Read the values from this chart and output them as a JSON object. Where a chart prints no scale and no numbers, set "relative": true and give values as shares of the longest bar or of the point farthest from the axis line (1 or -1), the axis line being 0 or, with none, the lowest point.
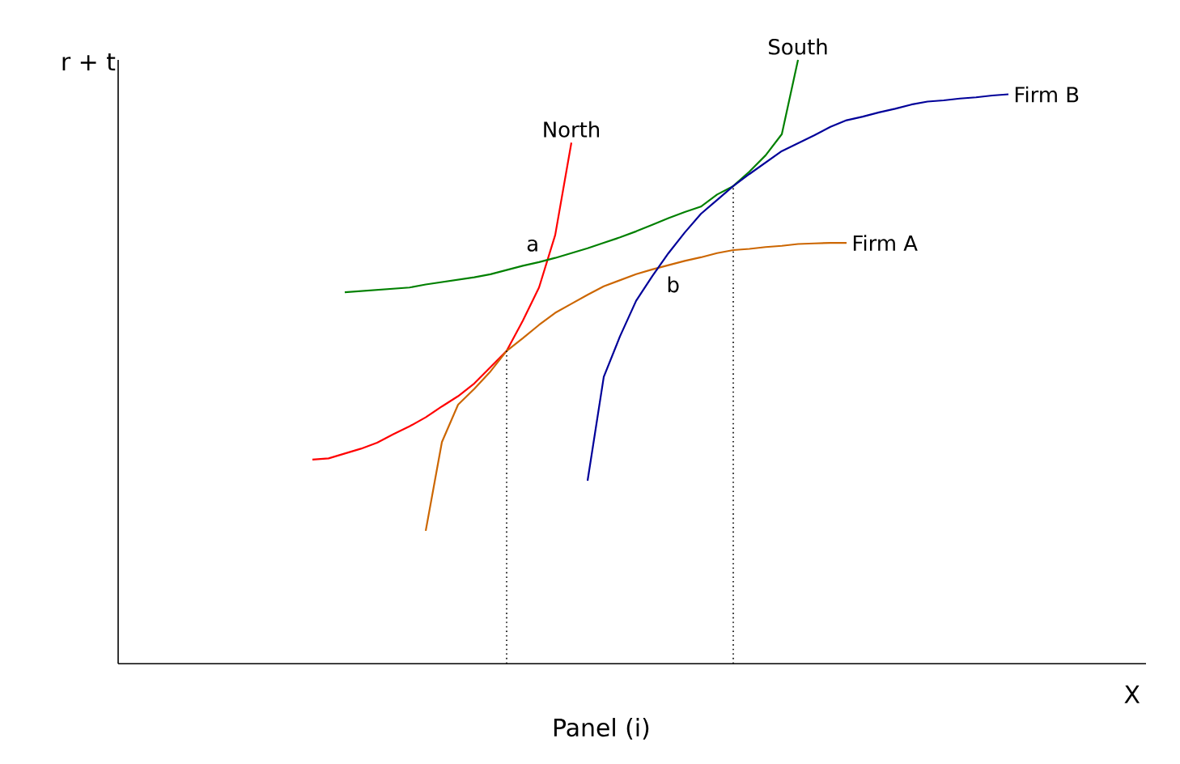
{
  "chart_data": {
    "type": "line",
    "relative": true,
    "xlabel": "X",
    "ylabel": "r + t",
    "marker": "none",
    "categories": [
      null,
      null,
      null,
      null,
      null,
      null,
      null,
      null,
      null,
      null,
      null,
      null,
      null,
      null,
      null,
      null,
      null,
      null,
      null,
      null,
      null,
      null,
      null,
      null,
      null,
      null,
      null,
      null,
      null,
      null,
      null,
      null,
      null,
      null,
      null,
      null,
      null,
      null,
      null,
      null,
      null,
      null,
      null,
      null,
      null,
      null,
      null,
      null,
      null,
      null,
      null,
      null,
      null,
      null,
      null,
      null,
      null,
      null,
      null,
      null,
      null,
      null,
      null,
      null
    ],
    "annotations": [
      {
        "text": "a",
        "y": 0.665
      },
      {
        "text": "b",
        "y": 0.651
      },
      "Panel (i)"
    ],
    "series": [
      {
        "name": "North",
        "color": "#ff0000",
        "values": [
          null,
          null,
          null,
          null,
          null,
          null,
          null,
          null,
          null,
          null,
          null,
          null,
          0.338,
          0.34,
          0.348,
          0.356,
          0.366,
          0.38,
          0.393,
          0.408,
          0.426,
          0.443,
          0.464,
          0.491,
          0.518,
          0.568,
          0.623,
          0.71,
          0.863,
          null,
          null,
          null,
          null,
          null,
          null,
          null,
          null,
          null,
          null,
          null,
          null,
          null,
          null,
          null,
          null,
          null,
          null,
          null,
          null,
          null,
          null,
          null,
          null,
          null,
          null,
          null,
          null,
          null,
          null,
          null,
          null,
          null,
          null,
          null
        ]
      },
      {
        "name": "South",
        "color": "#008000",
        "values": [
          null,
          null,
          null,
          null,
          null,
          null,
          null,
          null,
          null,
          null,
          null,
          null,
          null,
          null,
          0.615,
          0.617,
          0.619,
          0.621,
          0.623,
          0.628,
          0.632,
          0.636,
          0.64,
          0.645,
          0.652,
          0.659,
          0.665,
          0.672,
          0.68,
          0.688,
          0.697,
          0.706,
          0.716,
          0.727,
          0.738,
          0.748,
          0.757,
          0.777,
          0.791,
          0.815,
          0.842,
          0.877,
          1.0,
          null,
          null,
          null,
          null,
          null,
          null,
          null,
          null,
          null,
          null,
          null,
          null,
          null,
          null,
          null,
          null,
          null,
          null,
          null,
          null,
          null
        ]
      },
      {
        "name": "Firm A",
        "color": "#cc6600",
        "values": [
          null,
          null,
          null,
          null,
          null,
          null,
          null,
          null,
          null,
          null,
          null,
          null,
          null,
          null,
          null,
          null,
          null,
          null,
          null,
          0.22,
          0.367,
          0.429,
          0.455,
          0.484,
          0.518,
          0.539,
          0.561,
          0.581,
          0.596,
          0.611,
          0.625,
          0.635,
          0.645,
          0.653,
          0.66,
          0.667,
          0.673,
          0.68,
          0.685,
          0.687,
          0.69,
          0.692,
          0.695,
          0.696,
          0.697,
          0.697,
          null,
          null,
          null,
          null,
          null,
          null,
          null,
          null,
          null,
          null,
          null,
          null,
          null,
          null,
          null,
          null,
          null,
          null
        ]
      },
      {
        "name": "Firm B",
        "color": "#000099",
        "values": [
          null,
          null,
          null,
          null,
          null,
          null,
          null,
          null,
          null,
          null,
          null,
          null,
          null,
          null,
          null,
          null,
          null,
          null,
          null,
          null,
          null,
          null,
          null,
          null,
          null,
          null,
          null,
          null,
          null,
          0.303,
          0.475,
          0.542,
          0.601,
          0.642,
          0.68,
          0.714,
          0.745,
          0.768,
          0.791,
          0.811,
          0.83,
          0.849,
          0.862,
          0.875,
          0.889,
          0.9,
          0.906,
          0.913,
          0.919,
          0.926,
          0.931,
          0.933,
          0.936,
          0.938,
          0.941,
          0.943,
          null,
          null,
          null,
          null,
          null,
          null,
          null,
          null
        ]
      }
    ]
  }
}
